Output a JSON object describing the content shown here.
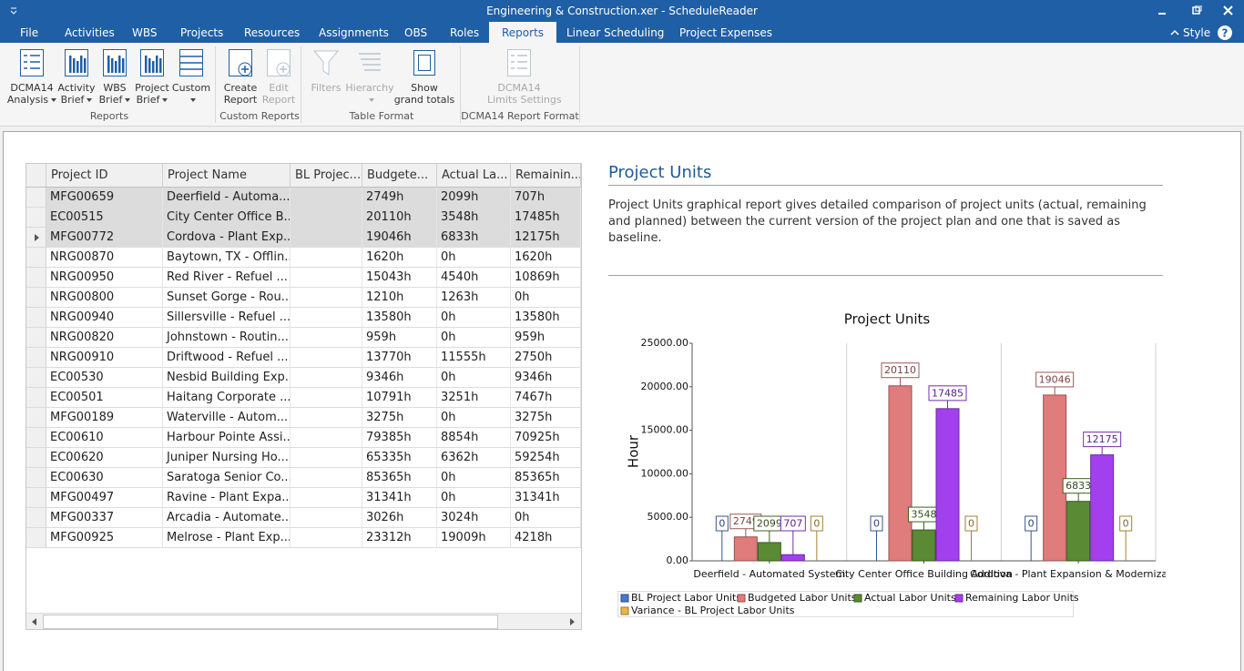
{
  "window": {
    "title": "Engineering & Construction.xer - ScheduleReader"
  },
  "menu": {
    "tabs": [
      "File",
      "Activities",
      "WBS",
      "Projects",
      "Resources",
      "Assignments",
      "OBS",
      "Roles",
      "Reports",
      "Linear Scheduling",
      "Project Expenses"
    ],
    "active_tab_index": 8,
    "style": "Style",
    "help": "?"
  },
  "ribbon": {
    "groups": [
      {
        "label": "Reports",
        "buttons": [
          {
            "lines": [
              "DCMA14",
              "Analysis"
            ],
            "dropdown": true,
            "enabled": true
          },
          {
            "lines": [
              "Activity",
              "Brief"
            ],
            "dropdown": true,
            "enabled": true
          },
          {
            "lines": [
              "WBS",
              "Brief"
            ],
            "dropdown": true,
            "enabled": true
          },
          {
            "lines": [
              "Project",
              "Brief"
            ],
            "dropdown": true,
            "enabled": true
          },
          {
            "lines": [
              "Custom"
            ],
            "dropdown": true,
            "enabled": true
          }
        ]
      },
      {
        "label": "Custom Reports",
        "buttons": [
          {
            "lines": [
              "Create",
              "Report"
            ],
            "dropdown": false,
            "enabled": true
          },
          {
            "lines": [
              "Edit",
              "Report"
            ],
            "dropdown": false,
            "enabled": false
          }
        ]
      },
      {
        "label": "Table Format",
        "buttons": [
          {
            "lines": [
              "Filters"
            ],
            "dropdown": false,
            "enabled": false
          },
          {
            "lines": [
              "Hierarchy"
            ],
            "dropdown": true,
            "enabled": false
          },
          {
            "lines": [
              "Show",
              "grand totals"
            ],
            "dropdown": false,
            "enabled": true
          }
        ]
      },
      {
        "label": "DCMA14 Report Format",
        "buttons": [
          {
            "lines": [
              "DCMA14",
              "Limits Settings"
            ],
            "dropdown": false,
            "enabled": false
          }
        ]
      }
    ]
  },
  "table": {
    "columns": [
      "Project ID",
      "Project Name",
      "BL Projec...",
      "Budgete...",
      "Actual La...",
      "Remainin..."
    ],
    "selected_rows": [
      0,
      1,
      2
    ],
    "current_row": 2,
    "rows": [
      [
        "MFG00659",
        "Deerfield - Automa...",
        "",
        "2749h",
        "2099h",
        "707h"
      ],
      [
        "EC00515",
        "City Center Office B...",
        "",
        "20110h",
        "3548h",
        "17485h"
      ],
      [
        "MFG00772",
        "Cordova - Plant Exp...",
        "",
        "19046h",
        "6833h",
        "12175h"
      ],
      [
        "NRG00870",
        "Baytown, TX - Offlin...",
        "",
        "1620h",
        "0h",
        "1620h"
      ],
      [
        "NRG00950",
        "Red River - Refuel ...",
        "",
        "15043h",
        "4540h",
        "10869h"
      ],
      [
        "NRG00800",
        "Sunset Gorge - Rou...",
        "",
        "1210h",
        "1263h",
        "0h"
      ],
      [
        "NRG00940",
        "Sillersville - Refuel ...",
        "",
        "13580h",
        "0h",
        "13580h"
      ],
      [
        "NRG00820",
        "Johnstown - Routin...",
        "",
        "959h",
        "0h",
        "959h"
      ],
      [
        "NRG00910",
        "Driftwood - Refuel ...",
        "",
        "13770h",
        "11555h",
        "2750h"
      ],
      [
        "EC00530",
        "Nesbid Building Exp...",
        "",
        "9346h",
        "0h",
        "9346h"
      ],
      [
        "EC00501",
        "Haitang Corporate ...",
        "",
        "10791h",
        "3251h",
        "7467h"
      ],
      [
        "MFG00189",
        "Waterville - Autom...",
        "",
        "3275h",
        "0h",
        "3275h"
      ],
      [
        "EC00610",
        "Harbour Pointe Assi...",
        "",
        "79385h",
        "8854h",
        "70925h"
      ],
      [
        "EC00620",
        "Juniper Nursing Ho...",
        "",
        "65335h",
        "6362h",
        "59254h"
      ],
      [
        "EC00630",
        "Saratoga Senior Co...",
        "",
        "85365h",
        "0h",
        "85365h"
      ],
      [
        "MFG00497",
        "Ravine - Plant Expa...",
        "",
        "31341h",
        "0h",
        "31341h"
      ],
      [
        "MFG00337",
        "Arcadia - Automate...",
        "",
        "3026h",
        "3024h",
        "0h"
      ],
      [
        "MFG00925",
        "Melrose - Plant Exp...",
        "",
        "23312h",
        "19009h",
        "4218h"
      ]
    ]
  },
  "report": {
    "title": "Project Units",
    "description": "Project Units graphical report gives detailed comparison of project units (actual, remaining and planned) between the current version of the project plan and one that is saved as baseline."
  },
  "chart_data": {
    "type": "bar",
    "title": "Project Units",
    "y_label": "Hour",
    "categories": [
      "Deerfield - Automated System",
      "City Center Office Building Addition",
      "Cordova - Plant Expansion & Modernization"
    ],
    "series": [
      {
        "name": "BL Project Labor Units",
        "color": "#4a78d0",
        "values": [
          0,
          0,
          0
        ]
      },
      {
        "name": "Budgeted Labor Units",
        "color": "#e07c7c",
        "values": [
          2749,
          20110,
          19046
        ]
      },
      {
        "name": "Actual Labor Units",
        "color": "#5b8a34",
        "values": [
          2099,
          3548,
          6833
        ]
      },
      {
        "name": "Remaining Labor Units",
        "color": "#a340ee",
        "values": [
          707,
          17485,
          12175
        ]
      },
      {
        "name": "Variance - BL Project Labor Units",
        "color": "#e8b848",
        "values": [
          0,
          0,
          0
        ]
      }
    ],
    "ylim": [
      0,
      25000
    ],
    "yticks": [
      {
        "value": 0,
        "label": "0.00"
      },
      {
        "value": 5000,
        "label": "5000.00"
      },
      {
        "value": 10000,
        "label": "10000.00"
      },
      {
        "value": 15000,
        "label": "15000.00"
      },
      {
        "value": 20000,
        "label": "20000.00"
      },
      {
        "value": 25000,
        "label": "25000.00"
      }
    ],
    "grid": false,
    "data_labels": true,
    "legend": "bottom-left"
  }
}
